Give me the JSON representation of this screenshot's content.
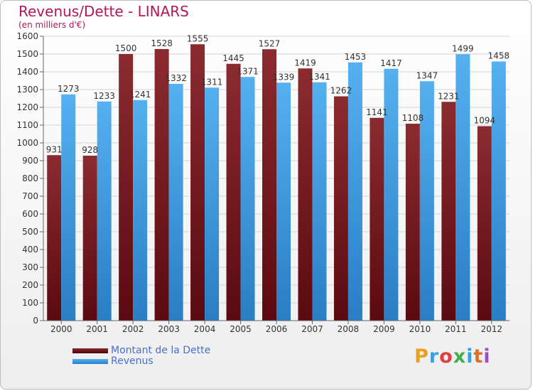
{
  "title": "Revenus/Dette - LINARS",
  "subtitle": "(en milliers d'€)",
  "logo": {
    "text": "Proxiti"
  },
  "colors": {
    "dette": "#7a1f24",
    "revenus": "#3d9be0",
    "title": "#b0185a",
    "legend_text": "#4a6fd0"
  },
  "chart_data": {
    "type": "bar",
    "categories": [
      "2000",
      "2001",
      "2002",
      "2003",
      "2004",
      "2005",
      "2006",
      "2007",
      "2008",
      "2009",
      "2010",
      "2011",
      "2012"
    ],
    "series": [
      {
        "name": "Montant de la Dette",
        "values": [
          931,
          928,
          1500,
          1528,
          1555,
          1445,
          1527,
          1419,
          1262,
          1141,
          1108,
          1231,
          1094
        ],
        "labels": [
          "931",
          "928",
          "1500",
          "1528",
          "1555",
          "1445",
          "1527",
          "1419",
          "1262",
          "1141",
          "1108",
          "1231",
          "1094"
        ]
      },
      {
        "name": "Revenus",
        "values": [
          1273,
          1233,
          1241,
          1332,
          1311,
          1371,
          1339,
          1341,
          1453,
          1417,
          1347,
          1499,
          1458
        ],
        "labels": [
          "1273",
          "1233",
          "1241",
          "1332",
          "1311",
          "1371",
          "1339",
          "1341",
          "1453",
          "1417",
          "1347",
          "1499",
          "1458"
        ]
      }
    ],
    "yticks": [
      0,
      100,
      200,
      300,
      400,
      500,
      600,
      700,
      800,
      900,
      1000,
      1100,
      1200,
      1300,
      1400,
      1500,
      1600
    ],
    "ylim": [
      0,
      1600
    ],
    "grid": true,
    "legend_position": "bottom-left"
  }
}
